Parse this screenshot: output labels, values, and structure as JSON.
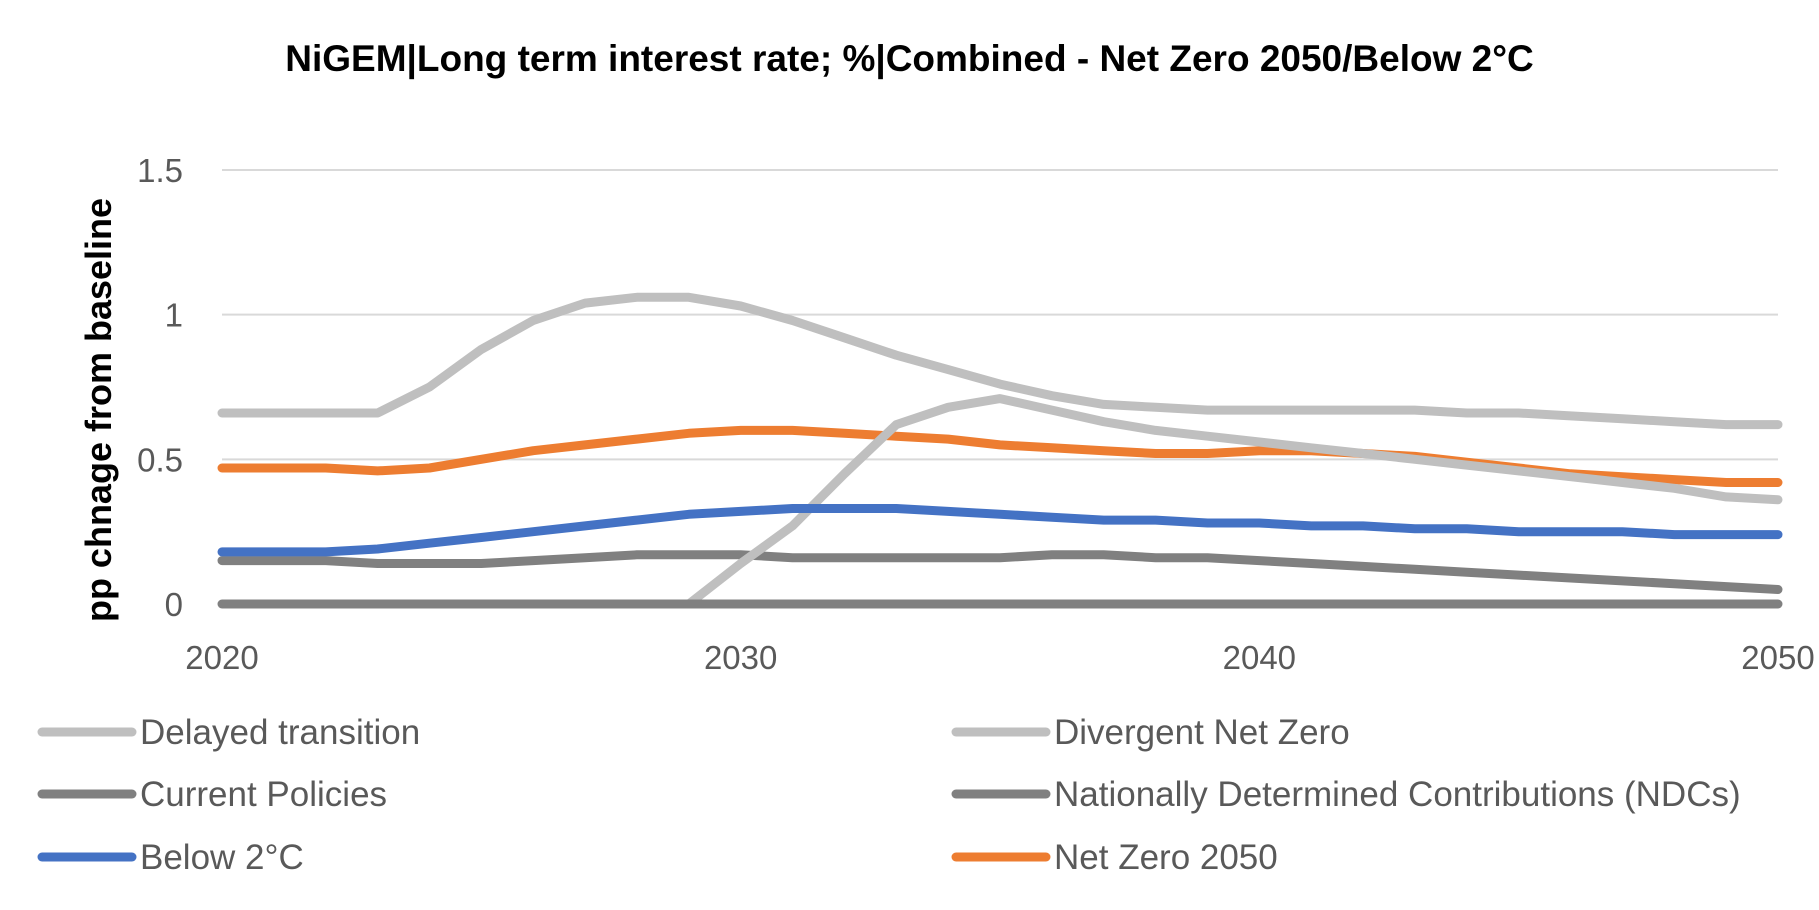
{
  "chart_data": {
    "type": "line",
    "title": "NiGEM|Long term interest rate; %|Combined - Net Zero 2050/Below 2°C",
    "ylabel": "pp chnage from baseline",
    "xlabel": "",
    "xlim": [
      2020,
      2050
    ],
    "ylim": [
      0,
      1.5
    ],
    "yticks": [
      0,
      0.5,
      1,
      1.5
    ],
    "ytick_labels": [
      "0",
      "0.5",
      "1",
      "1.5"
    ],
    "xticks": [
      2020,
      2030,
      2040,
      2050
    ],
    "xtick_labels": [
      "2020",
      "2030",
      "2040",
      "2050"
    ],
    "grid": "horizontal",
    "legend_position": "bottom",
    "x": [
      2020,
      2021,
      2022,
      2023,
      2024,
      2025,
      2026,
      2027,
      2028,
      2029,
      2030,
      2031,
      2032,
      2033,
      2034,
      2035,
      2036,
      2037,
      2038,
      2039,
      2040,
      2041,
      2042,
      2043,
      2044,
      2045,
      2046,
      2047,
      2048,
      2049,
      2050
    ],
    "series": [
      {
        "name": "Delayed transition",
        "color": "#bfbfbf",
        "values": [
          0.66,
          0.66,
          0.66,
          0.66,
          0.75,
          0.88,
          0.98,
          1.04,
          1.06,
          1.06,
          1.03,
          0.98,
          0.92,
          0.86,
          0.81,
          0.76,
          0.72,
          0.69,
          0.68,
          0.67,
          0.67,
          0.67,
          0.67,
          0.67,
          0.66,
          0.66,
          0.65,
          0.64,
          0.63,
          0.62,
          0.62
        ]
      },
      {
        "name": "Divergent Net Zero",
        "color": "#bfbfbf",
        "values": [
          null,
          null,
          null,
          null,
          null,
          null,
          null,
          null,
          null,
          0.0,
          0.14,
          0.27,
          0.45,
          0.62,
          0.68,
          0.71,
          0.67,
          0.63,
          0.6,
          0.58,
          0.56,
          0.54,
          0.52,
          0.5,
          0.48,
          0.46,
          0.44,
          0.42,
          0.4,
          0.37,
          0.36
        ]
      },
      {
        "name": "Current Policies",
        "color": "#808080",
        "values": [
          0,
          0,
          0,
          0,
          0,
          0,
          0,
          0,
          0,
          0,
          0,
          0,
          0,
          0,
          0,
          0,
          0,
          0,
          0,
          0,
          0,
          0,
          0,
          0,
          0,
          0,
          0,
          0,
          0,
          0,
          0
        ]
      },
      {
        "name": "Nationally Determined Contributions (NDCs)",
        "color": "#808080",
        "values": [
          0.15,
          0.15,
          0.15,
          0.14,
          0.14,
          0.14,
          0.15,
          0.16,
          0.17,
          0.17,
          0.17,
          0.16,
          0.16,
          0.16,
          0.16,
          0.16,
          0.17,
          0.17,
          0.16,
          0.16,
          0.15,
          0.14,
          0.13,
          0.12,
          0.11,
          0.1,
          0.09,
          0.08,
          0.07,
          0.06,
          0.05
        ]
      },
      {
        "name": "Below 2°C",
        "color": "#4472c4",
        "values": [
          0.18,
          0.18,
          0.18,
          0.19,
          0.21,
          0.23,
          0.25,
          0.27,
          0.29,
          0.31,
          0.32,
          0.33,
          0.33,
          0.33,
          0.32,
          0.31,
          0.3,
          0.29,
          0.29,
          0.28,
          0.28,
          0.27,
          0.27,
          0.26,
          0.26,
          0.25,
          0.25,
          0.25,
          0.24,
          0.24,
          0.24
        ]
      },
      {
        "name": "Net Zero 2050",
        "color": "#ed7d31",
        "values": [
          0.47,
          0.47,
          0.47,
          0.46,
          0.47,
          0.5,
          0.53,
          0.55,
          0.57,
          0.59,
          0.6,
          0.6,
          0.59,
          0.58,
          0.57,
          0.55,
          0.54,
          0.53,
          0.52,
          0.52,
          0.53,
          0.53,
          0.52,
          0.51,
          0.49,
          0.47,
          0.45,
          0.44,
          0.43,
          0.42,
          0.42
        ]
      }
    ],
    "draw_order": [
      5,
      3,
      0,
      1,
      4,
      2
    ]
  }
}
